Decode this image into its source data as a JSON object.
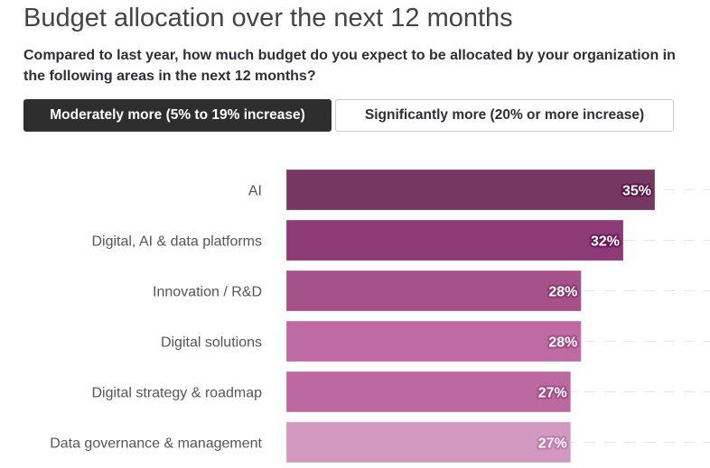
{
  "header": {
    "title": "Budget allocation over the next 12 months",
    "subtitle": "Compared to last year, how much budget do you expect to be allocated by your organization in the following areas in the next 12 months?"
  },
  "toggle": {
    "options": [
      {
        "label": "Moderately more (5% to 19% increase)",
        "active": true
      },
      {
        "label": "Significantly more (20% or more increase)",
        "active": false
      }
    ]
  },
  "chart_data": {
    "type": "bar",
    "orientation": "horizontal",
    "categories": [
      "AI",
      "Digital, AI & data platforms",
      "Innovation / R&D",
      "Digital solutions",
      "Digital strategy & roadmap",
      "Data governance & management"
    ],
    "values": [
      35,
      32,
      28,
      28,
      27,
      27
    ],
    "value_labels": [
      "35%",
      "32%",
      "28%",
      "28%",
      "27%",
      "27%"
    ],
    "colors": [
      "#773763",
      "#8e3a78",
      "#a5528a",
      "#bf6aa3",
      "#bd68a0",
      "#d298c0"
    ],
    "label_outline_colors": [
      "#5a1a48",
      "#6a1a58",
      "#8a3a72",
      "#a24c88",
      "#a24c88",
      "#c07aaa"
    ],
    "grid": "dashed horizontal",
    "xlim": [
      0,
      35
    ]
  }
}
